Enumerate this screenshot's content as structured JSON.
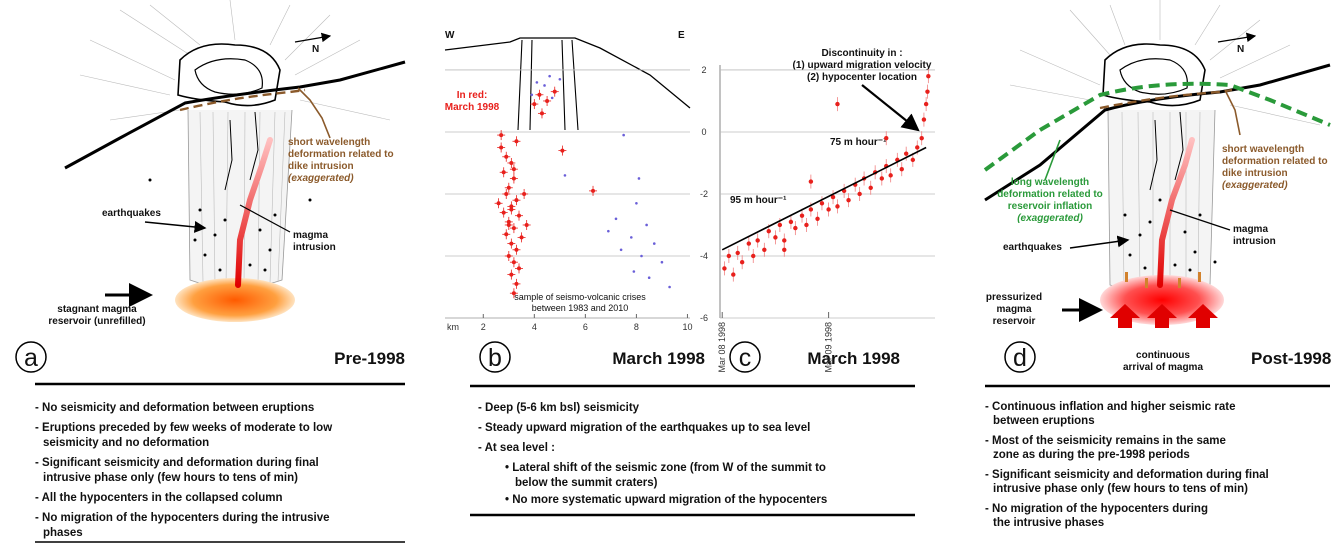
{
  "panel_a": {
    "letter": "a",
    "period": "Pre-1998",
    "north": "N",
    "short_wavelength": [
      "short wavelength",
      "deformation related to",
      "dike intrusion",
      "(exaggerated)"
    ],
    "earthquakes": "earthquakes",
    "magma_intrusion": [
      "magma",
      "intrusion"
    ],
    "reservoir": [
      "stagnant magma",
      "reservoir (unrefilled)"
    ],
    "bullets": [
      [
        "- No seismicity and deformation between eruptions"
      ],
      [
        "- Eruptions preceded by few weeks of moderate to low",
        "seismicity and no deformation"
      ],
      [
        "- Significant seismicity and deformation during final",
        "intrusive phase only (few hours to tens of min)"
      ],
      [
        "- All the hypocenters in the collapsed column"
      ],
      [
        "- No migration of the hypocenters during the intrusive",
        "phases"
      ]
    ]
  },
  "panel_b": {
    "letter": "b",
    "period": "March 1998",
    "west": "W",
    "east": "E",
    "km_label": "km",
    "in_red": [
      "In red:",
      "March 1998"
    ],
    "sample_note": [
      "sample of seismo-volcanic crises",
      "between 1983 and  2010"
    ],
    "xlim": [
      0.5,
      10.1
    ],
    "ylim": [
      -6,
      2.16
    ],
    "xticks": [
      2,
      4,
      6,
      8,
      10
    ],
    "yticks": [
      2,
      0,
      -2,
      -4,
      -6
    ],
    "series": [
      {
        "color": "#e8201c",
        "points": [
          [
            2.7,
            -0.5
          ],
          [
            2.9,
            -0.8
          ],
          [
            3.1,
            -1.0
          ],
          [
            2.8,
            -1.3
          ],
          [
            3.2,
            -1.5
          ],
          [
            3.0,
            -1.8
          ],
          [
            2.9,
            -2.0
          ],
          [
            3.3,
            -2.2
          ],
          [
            3.1,
            -2.4
          ],
          [
            2.8,
            -2.6
          ],
          [
            3.4,
            -2.7
          ],
          [
            3.0,
            -2.9
          ],
          [
            3.2,
            -3.1
          ],
          [
            2.9,
            -3.3
          ],
          [
            3.5,
            -3.4
          ],
          [
            3.1,
            -3.6
          ],
          [
            3.3,
            -3.8
          ],
          [
            3.0,
            -4.0
          ],
          [
            3.2,
            -4.2
          ],
          [
            3.4,
            -4.4
          ],
          [
            3.1,
            -4.6
          ],
          [
            3.3,
            -4.9
          ],
          [
            3.2,
            -5.2
          ],
          [
            2.7,
            -0.1
          ],
          [
            3.3,
            -0.3
          ],
          [
            3.6,
            -2.0
          ],
          [
            2.6,
            -2.3
          ],
          [
            3.7,
            -3.0
          ],
          [
            4.2,
            1.2
          ],
          [
            4.5,
            1.0
          ],
          [
            4.0,
            0.9
          ],
          [
            4.8,
            1.3
          ],
          [
            4.3,
            0.6
          ],
          [
            5.1,
            -0.6
          ],
          [
            6.3,
            -1.9
          ],
          [
            3.1,
            -2.5
          ],
          [
            3.0,
            -3.0
          ],
          [
            3.2,
            -1.2
          ]
        ]
      },
      {
        "color": "#6a5fd8",
        "points": [
          [
            4.1,
            1.6
          ],
          [
            4.6,
            1.8
          ],
          [
            3.9,
            1.2
          ],
          [
            4.4,
            1.5
          ],
          [
            5.0,
            1.7
          ],
          [
            4.7,
            1.1
          ],
          [
            7.5,
            -0.1
          ],
          [
            8.0,
            -2.3
          ],
          [
            7.2,
            -2.8
          ],
          [
            8.4,
            -3.0
          ],
          [
            7.8,
            -3.4
          ],
          [
            8.7,
            -3.6
          ],
          [
            7.4,
            -3.8
          ],
          [
            8.2,
            -4.0
          ],
          [
            9.0,
            -4.2
          ],
          [
            7.9,
            -4.5
          ],
          [
            8.5,
            -4.7
          ],
          [
            6.9,
            -3.2
          ],
          [
            9.3,
            -5.0
          ],
          [
            8.1,
            -1.5
          ],
          [
            5.2,
            -1.4
          ]
        ]
      }
    ],
    "bullets": [
      [
        "- Deep (5-6 km bsl) seismicity"
      ],
      [
        "- Steady upward migration of the earthquakes up to sea level"
      ],
      [
        "- At sea level :"
      ]
    ],
    "sub_bullets": [
      [
        "• Lateral shift of the seismic zone (from W of the summit to",
        "below the summit craters)"
      ],
      [
        "• No more systematic upward migration of the hypocenters"
      ]
    ]
  },
  "panel_c": {
    "letter": "c",
    "period": "March 1998",
    "discontinuity": [
      "Discontinuity in :",
      "(1) upward migration velocity",
      "(2) hypocenter location"
    ],
    "rate_early": "95 m hour⁻¹",
    "rate_late": "75 m hour⁻¹",
    "xlim": [
      -0.5,
      48
    ],
    "ylim": [
      -6,
      2.16
    ],
    "xticks": [
      {
        "value": 0,
        "label": "Mar 08 1998"
      },
      {
        "value": 24,
        "label": "Mar 09 1998"
      }
    ],
    "color": "#e8201c",
    "points": [
      [
        0.5,
        -4.4
      ],
      [
        1.5,
        -4.0
      ],
      [
        2.5,
        -4.6
      ],
      [
        3.5,
        -3.9
      ],
      [
        4.5,
        -4.2
      ],
      [
        6,
        -3.6
      ],
      [
        7,
        -4.0
      ],
      [
        8,
        -3.5
      ],
      [
        9.5,
        -3.8
      ],
      [
        10.5,
        -3.2
      ],
      [
        12,
        -3.4
      ],
      [
        13,
        -3.0
      ],
      [
        14,
        -3.5
      ],
      [
        15.5,
        -2.9
      ],
      [
        16.5,
        -3.1
      ],
      [
        18,
        -2.7
      ],
      [
        19,
        -3.0
      ],
      [
        20,
        -2.5
      ],
      [
        21.5,
        -2.8
      ],
      [
        22.5,
        -2.3
      ],
      [
        24,
        -2.5
      ],
      [
        25,
        -2.1
      ],
      [
        26,
        -2.4
      ],
      [
        27.5,
        -1.9
      ],
      [
        28.5,
        -2.2
      ],
      [
        30,
        -1.7
      ],
      [
        31,
        -2.0
      ],
      [
        32,
        -1.5
      ],
      [
        33.5,
        -1.8
      ],
      [
        34.5,
        -1.3
      ],
      [
        36,
        -1.5
      ],
      [
        37,
        -1.1
      ],
      [
        38,
        -1.4
      ],
      [
        39.5,
        -0.9
      ],
      [
        40.5,
        -1.2
      ],
      [
        41.5,
        -0.7
      ],
      [
        43,
        -0.9
      ],
      [
        44,
        -0.5
      ],
      [
        45,
        -0.2
      ],
      [
        45.5,
        0.4
      ],
      [
        46,
        0.9
      ],
      [
        46.3,
        1.3
      ],
      [
        46.5,
        1.8
      ],
      [
        20,
        -1.6
      ],
      [
        26,
        0.9
      ],
      [
        37,
        -0.2
      ],
      [
        14,
        -3.8
      ]
    ],
    "fit": {
      "x": [
        0,
        46
      ],
      "y": [
        -3.8,
        -0.5
      ]
    }
  },
  "panel_d": {
    "letter": "d",
    "period": "Post-1998",
    "north": "N",
    "long_wavelength": [
      "long wavelength",
      "deformation related to",
      "reservoir inflation",
      "(exaggerated)"
    ],
    "short_wavelength": [
      "short wavelength",
      "deformation related to",
      "dike intrusion",
      "(exaggerated)"
    ],
    "earthquakes": "earthquakes",
    "magma_intrusion": [
      "magma",
      "intrusion"
    ],
    "reservoir": [
      "pressurized",
      "magma",
      "reservoir"
    ],
    "arrival": [
      "continuous",
      "arrival of magma"
    ],
    "bullets": [
      [
        "- Continuous inflation and higher seismic rate",
        "between eruptions"
      ],
      [
        "- Most of the seismicity remains  in the same",
        "zone as during the pre-1998 periods"
      ],
      [
        "- Significant seismicity and deformation during final",
        "intrusive phase only (few hours to tens of min)"
      ],
      [
        "- No migration of the hypocenters during",
        "the intrusive phases"
      ]
    ]
  }
}
